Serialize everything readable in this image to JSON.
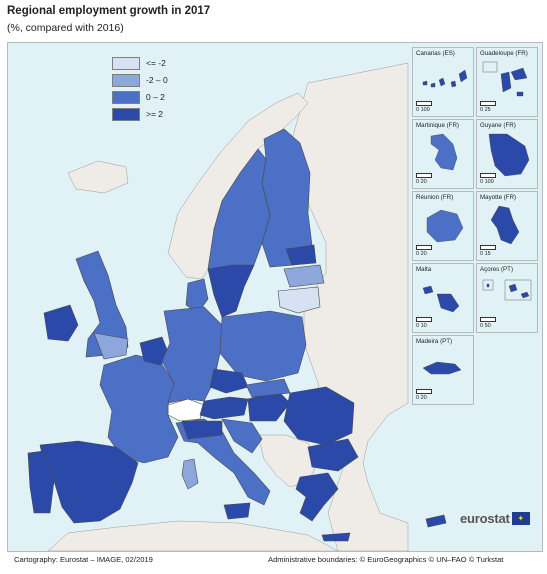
{
  "title": "Regional employment growth in 2017",
  "subtitle": "(%, compared with 2016)",
  "legend": [
    {
      "label": "<= -2",
      "color": "#d6e2f4"
    },
    {
      "label": "-2 – 0",
      "color": "#8da6dc"
    },
    {
      "label": "0 – 2",
      "color": "#4c70c6"
    },
    {
      "label": ">= 2",
      "color": "#2b49a9"
    }
  ],
  "colors": {
    "sea": "#e1f2f7",
    "non_eu_land": "#efebe7",
    "no_data": "#ffffff",
    "border": "#4a4a4a"
  },
  "insets": [
    {
      "label": "Canarias (ES)",
      "scale": "0  100"
    },
    {
      "label": "Guadeloupe (FR)",
      "scale": "0  25"
    },
    {
      "label": "Martinique (FR)",
      "scale": "0  20"
    },
    {
      "label": "Guyane (FR)",
      "scale": "0  100"
    },
    {
      "label": "Réunion (FR)",
      "scale": "0  20"
    },
    {
      "label": "Mayotte (FR)",
      "scale": "0  15"
    },
    {
      "label": "Malta",
      "scale": "0  10"
    },
    {
      "label": "Açores (PT)",
      "scale": "0  50"
    },
    {
      "label": "Madeira (PT)",
      "scale": "0  20"
    }
  ],
  "logo": {
    "text": "eurostat"
  },
  "footer": {
    "cartography": "Cartography: Eurostat – IMAGE, 02/2019",
    "boundaries": "Administrative boundaries: © EuroGeographics © UN–FAO © Turkstat"
  }
}
